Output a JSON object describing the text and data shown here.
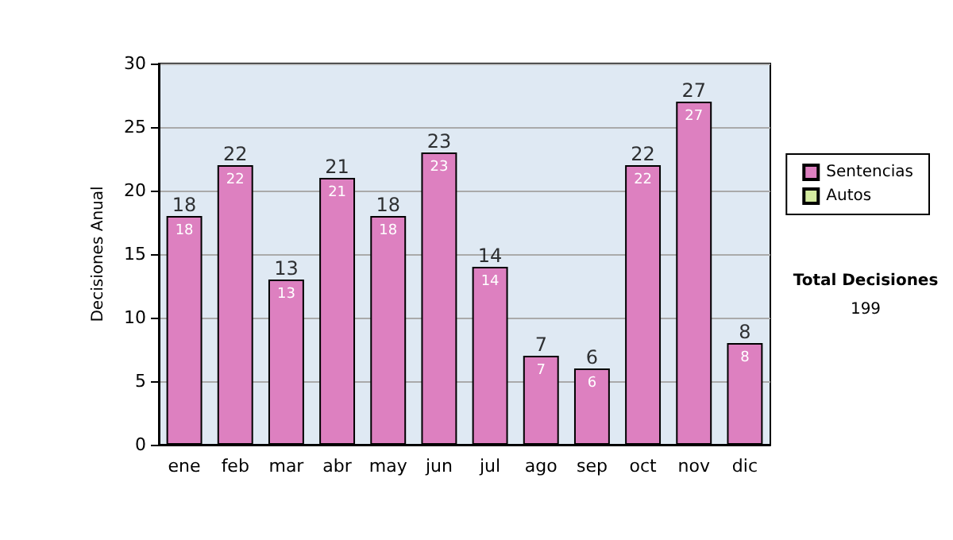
{
  "chart_data": {
    "type": "bar",
    "ylabel": "Decisiones Anual",
    "categories": [
      "ene",
      "feb",
      "mar",
      "abr",
      "may",
      "jun",
      "jul",
      "ago",
      "sep",
      "oct",
      "nov",
      "dic"
    ],
    "series": [
      {
        "name": "Sentencias",
        "color": "#dd80c0",
        "values": [
          18,
          22,
          13,
          21,
          18,
          23,
          14,
          7,
          6,
          22,
          27,
          8
        ],
        "value_labels": [
          "18",
          "22",
          "13",
          "21",
          "18",
          "23",
          "14",
          "7",
          "6",
          "22",
          "27",
          "8"
        ]
      },
      {
        "name": "Autos",
        "color": "#d4eba0",
        "values": [
          0,
          0,
          0,
          0,
          0,
          0,
          0,
          0,
          0,
          0,
          0,
          0
        ]
      }
    ],
    "stacked": true,
    "totals": [
      "18",
      "22",
      "13",
      "21",
      "18",
      "23",
      "14",
      "7",
      "6",
      "22",
      "27",
      "8"
    ],
    "ylim": [
      0,
      30
    ],
    "yticks": [
      0,
      5,
      10,
      15,
      20,
      25,
      30
    ],
    "grid": "y",
    "legend": "right",
    "annotations": [
      "Total Decisiones",
      "199"
    ]
  }
}
